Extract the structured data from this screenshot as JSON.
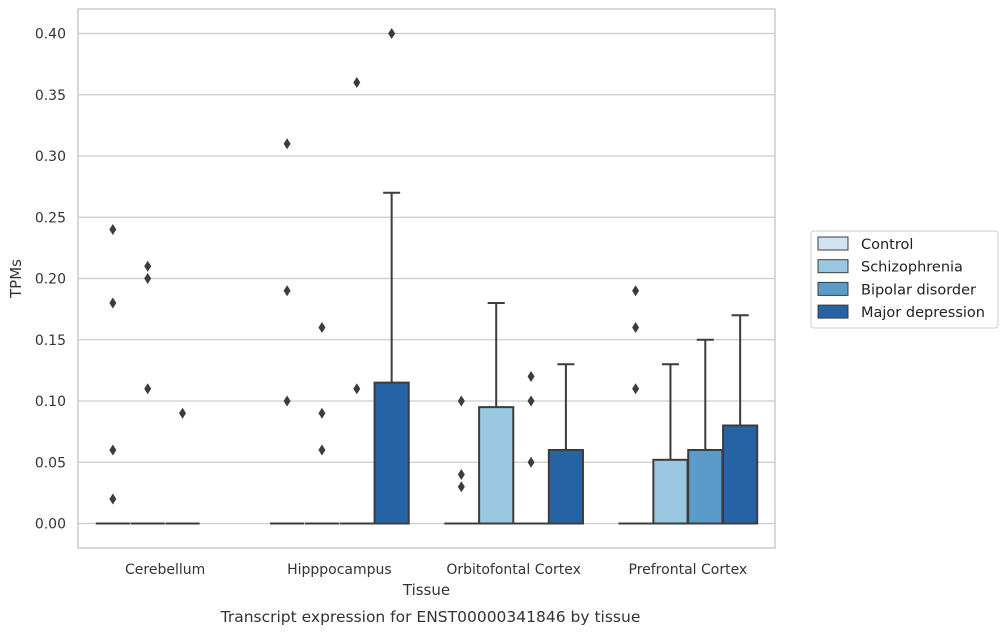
{
  "caption": "Transcript expression for ENST00000341846 by tissue",
  "chart_data": {
    "type": "box",
    "xlabel": "Tissue",
    "ylabel": "TPMs",
    "ylim": [
      -0.02,
      0.42
    ],
    "yticks": [
      0.0,
      0.05,
      0.1,
      0.15,
      0.2,
      0.25,
      0.3,
      0.35,
      0.4
    ],
    "ytick_labels": [
      "0.00",
      "0.05",
      "0.10",
      "0.15",
      "0.20",
      "0.25",
      "0.30",
      "0.35",
      "0.40"
    ],
    "grid": "horizontal",
    "legend_position": "right",
    "categories": [
      "Cerebellum",
      "Hipppocampus",
      "Orbitofontal Cortex",
      "Prefrontal Cortex"
    ],
    "series": [
      {
        "name": "Control",
        "color": "#d2e3f3",
        "boxes": [
          {
            "q1": 0,
            "median": 0,
            "q3": 0,
            "whisker_low": 0,
            "whisker_high": 0,
            "outliers": [
              0.18,
              0.24,
              0.06,
              0.02
            ]
          },
          {
            "q1": 0,
            "median": 0,
            "q3": 0,
            "whisker_low": 0,
            "whisker_high": 0,
            "outliers": [
              0.31,
              0.19,
              0.1
            ]
          },
          {
            "q1": 0,
            "median": 0,
            "q3": 0,
            "whisker_low": 0,
            "whisker_high": 0,
            "outliers": [
              0.1,
              0.04,
              0.03
            ]
          },
          {
            "q1": 0,
            "median": 0,
            "q3": 0,
            "whisker_low": 0,
            "whisker_high": 0,
            "outliers": [
              0.19,
              0.16,
              0.11
            ]
          }
        ]
      },
      {
        "name": "Schizophrenia",
        "color": "#9ac8e0",
        "boxes": [
          {
            "q1": 0,
            "median": 0,
            "q3": 0,
            "whisker_low": 0,
            "whisker_high": 0,
            "outliers": [
              0.21,
              0.2,
              0.11
            ]
          },
          {
            "q1": 0,
            "median": 0,
            "q3": 0,
            "whisker_low": 0,
            "whisker_high": 0,
            "outliers": [
              0.16,
              0.09,
              0.06
            ]
          },
          {
            "q1": 0,
            "median": 0,
            "q3": 0.095,
            "whisker_low": 0,
            "whisker_high": 0.18,
            "outliers": []
          },
          {
            "q1": 0,
            "median": 0,
            "q3": 0.052,
            "whisker_low": 0,
            "whisker_high": 0.13,
            "outliers": []
          }
        ]
      },
      {
        "name": "Bipolar disorder",
        "color": "#5a9bc9",
        "boxes": [
          {
            "q1": 0,
            "median": 0,
            "q3": 0,
            "whisker_low": 0,
            "whisker_high": 0,
            "outliers": [
              0.09
            ]
          },
          {
            "q1": 0,
            "median": 0,
            "q3": 0,
            "whisker_low": 0,
            "whisker_high": 0,
            "outliers": [
              0.36,
              0.11
            ]
          },
          {
            "q1": 0,
            "median": 0,
            "q3": 0,
            "whisker_low": 0,
            "whisker_high": 0,
            "outliers": [
              0.12,
              0.1,
              0.05
            ]
          },
          {
            "q1": 0,
            "median": 0,
            "q3": 0.06,
            "whisker_low": 0,
            "whisker_high": 0.15,
            "outliers": []
          }
        ]
      },
      {
        "name": "Major depression",
        "color": "#2563a4",
        "boxes": [
          null,
          {
            "q1": 0,
            "median": 0,
            "q3": 0.115,
            "whisker_low": 0,
            "whisker_high": 0.27,
            "outliers": [
              0.4
            ]
          },
          {
            "q1": 0,
            "median": 0,
            "q3": 0.06,
            "whisker_low": 0,
            "whisker_high": 0.13,
            "outliers": []
          },
          {
            "q1": 0,
            "median": 0,
            "q3": 0.08,
            "whisker_low": 0,
            "whisker_high": 0.17,
            "outliers": []
          }
        ]
      }
    ]
  }
}
